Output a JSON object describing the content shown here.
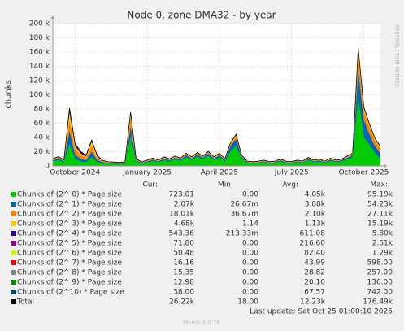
{
  "chart_data": {
    "type": "area",
    "title": "Node 0, zone DMA32 - by year",
    "y_label": "chunks",
    "side_label": "RRDTOOL / TOBI OETIKER",
    "categories": [
      null,
      null,
      null,
      null,
      "October 2024",
      null,
      null,
      null,
      null,
      null,
      null,
      null,
      null,
      null,
      null,
      null,
      null,
      "January 2025",
      null,
      null,
      null,
      null,
      null,
      null,
      null,
      null,
      null,
      null,
      null,
      null,
      "April 2025",
      null,
      null,
      null,
      null,
      null,
      null,
      null,
      null,
      null,
      null,
      null,
      null,
      "July 2025",
      null,
      null,
      null,
      null,
      null,
      null,
      null,
      null,
      null,
      null,
      null,
      null,
      "October 2025",
      null,
      null,
      null
    ],
    "ylim": [
      0,
      200000
    ],
    "yticks": [
      0,
      {
        "value": 20000,
        "label": "20 k"
      },
      {
        "value": 40000,
        "label": "40 k"
      },
      {
        "value": 60000,
        "label": "60 k"
      },
      {
        "value": 80000,
        "label": "80 k"
      },
      {
        "value": 100000,
        "label": "100 k"
      },
      {
        "value": 120000,
        "label": "120 k"
      },
      {
        "value": 140000,
        "label": "140 k"
      },
      {
        "value": 160000,
        "label": "160 k"
      },
      {
        "value": 180000,
        "label": "180 k"
      },
      {
        "value": 200000,
        "label": "200 k"
      }
    ],
    "grid": true,
    "stacked": true,
    "legend_headers": [
      "Cur:",
      "Min:",
      "Avg:",
      "Max:"
    ],
    "series": [
      {
        "name": "Chunks of (2^ 0) * Page size",
        "color": "#00CC00",
        "stats": [
          "723.01",
          "0.00",
          "4.05k",
          "95.19k"
        ],
        "values": [
          6000,
          8000,
          5000,
          30000,
          10000,
          6000,
          5000,
          12000,
          5000,
          4000,
          3000,
          3000,
          2500,
          3000,
          40000,
          6000,
          3000,
          5000,
          7000,
          5000,
          8000,
          6000,
          9000,
          7000,
          12000,
          8000,
          13000,
          9000,
          14000,
          8000,
          12000,
          6000,
          20000,
          28000,
          10000,
          4000,
          3500,
          4000,
          5000,
          3500,
          4000,
          6000,
          4000,
          3500,
          5000,
          4000,
          8000,
          5000,
          6000,
          4000,
          7000,
          5000,
          6000,
          9000,
          12000,
          95000,
          40000,
          30000,
          18000,
          10000
        ]
      },
      {
        "name": "Chunks of (2^ 1) * Page size",
        "color": "#0066B3",
        "stats": [
          "2.07k",
          "26.67m",
          "3.88k",
          "54.23k"
        ],
        "values": [
          2000,
          2500,
          1500,
          20000,
          6000,
          4000,
          3000,
          8000,
          3000,
          1500,
          1000,
          1000,
          1000,
          1200,
          15000,
          2000,
          1000,
          1500,
          2000,
          1500,
          2500,
          2000,
          2500,
          2000,
          3000,
          2500,
          3000,
          2500,
          3500,
          2500,
          3000,
          2000,
          8000,
          10000,
          3000,
          1200,
          1000,
          1200,
          1500,
          1000,
          1200,
          1800,
          1200,
          1000,
          1500,
          1200,
          2000,
          1500,
          1800,
          1200,
          2000,
          1500,
          1800,
          2500,
          3000,
          40000,
          25000,
          15000,
          10000,
          8000
        ]
      },
      {
        "name": "Chunks of (2^ 2) * Page size",
        "color": "#FF8000",
        "stats": [
          "18.01k",
          "36.67m",
          "2.10k",
          "27.11k"
        ],
        "values": [
          1000,
          1200,
          800,
          15000,
          8000,
          5000,
          3000,
          8000,
          3000,
          1000,
          800,
          600,
          600,
          700,
          12000,
          1000,
          600,
          800,
          1000,
          800,
          1000,
          900,
          1200,
          900,
          1500,
          1000,
          1500,
          1200,
          1500,
          1000,
          1500,
          900,
          3000,
          4000,
          1200,
          600,
          500,
          600,
          700,
          500,
          600,
          800,
          600,
          500,
          700,
          600,
          1000,
          700,
          800,
          600,
          900,
          700,
          800,
          1200,
          1500,
          20000,
          12000,
          10000,
          8000,
          6000
        ]
      },
      {
        "name": "Chunks of (2^ 3) * Page size",
        "color": "#FFCC00",
        "stats": [
          "4.68k",
          "1.14",
          "1.13k",
          "15.19k"
        ],
        "values": [
          500,
          600,
          400,
          10000,
          4000,
          2500,
          2000,
          6000,
          2000,
          500,
          400,
          300,
          300,
          300,
          6000,
          500,
          300,
          400,
          400,
          400,
          500,
          400,
          500,
          400,
          600,
          500,
          600,
          500,
          600,
          500,
          600,
          400,
          1000,
          1500,
          500,
          300,
          300,
          300,
          300,
          300,
          300,
          400,
          300,
          300,
          300,
          300,
          400,
          300,
          400,
          300,
          400,
          300,
          400,
          500,
          600,
          8000,
          4000,
          3000,
          2000,
          2000
        ]
      },
      {
        "name": "Chunks of (2^ 4) * Page size",
        "color": "#330099",
        "stats": [
          "543.36",
          "213.33m",
          "611.08",
          "5.80k"
        ],
        "values": [
          300,
          300,
          300,
          5800,
          3000,
          2500,
          1500,
          2000,
          1000,
          300,
          200,
          200,
          200,
          200,
          2000,
          300,
          200,
          200,
          200,
          200,
          300,
          200,
          300,
          200,
          300,
          200,
          300,
          200,
          300,
          200,
          300,
          200,
          400,
          500,
          200,
          200,
          200,
          200,
          200,
          200,
          200,
          200,
          200,
          200,
          200,
          200,
          200,
          200,
          200,
          200,
          200,
          200,
          200,
          300,
          300,
          2000,
          1500,
          1000,
          800,
          800
        ]
      },
      {
        "name": "Chunks of (2^ 5) * Page size",
        "color": "#990099",
        "stats": [
          "71.80",
          "0.00",
          "216.60",
          "2.51k"
        ],
        "values": [
          200,
          200,
          200,
          200,
          200,
          200,
          200,
          200,
          200,
          200,
          200,
          200,
          200,
          200,
          200,
          200,
          200,
          200,
          200,
          200,
          200,
          200,
          200,
          200,
          200,
          200,
          200,
          200,
          200,
          200,
          200,
          200,
          200,
          200,
          200,
          200,
          200,
          200,
          200,
          200,
          200,
          200,
          200,
          200,
          200,
          200,
          200,
          200,
          200,
          200,
          200,
          200,
          200,
          200,
          200,
          200,
          200,
          200,
          200,
          200
        ]
      },
      {
        "name": "Chunks of (2^ 6) * Page size",
        "color": "#CCFF00",
        "stats": [
          "50.48",
          "0.00",
          "82.40",
          "1.29k"
        ],
        "values": [
          80,
          80,
          80,
          80,
          80,
          80,
          80,
          80,
          80,
          80,
          80,
          80,
          80,
          80,
          80,
          80,
          80,
          80,
          80,
          80,
          80,
          80,
          80,
          80,
          80,
          80,
          80,
          80,
          80,
          80,
          80,
          80,
          80,
          80,
          80,
          80,
          80,
          80,
          80,
          80,
          80,
          80,
          80,
          80,
          80,
          80,
          80,
          80,
          80,
          80,
          80,
          80,
          80,
          80,
          80,
          80,
          80,
          80,
          80,
          80
        ]
      },
      {
        "name": "Chunks of (2^ 7) * Page size",
        "color": "#FF0000",
        "stats": [
          "16.16",
          "0.00",
          "43.99",
          "598.00"
        ],
        "values": [
          40,
          40,
          40,
          40,
          40,
          40,
          40,
          40,
          40,
          40,
          40,
          40,
          40,
          40,
          40,
          40,
          40,
          40,
          40,
          40,
          40,
          40,
          40,
          40,
          40,
          40,
          40,
          40,
          40,
          40,
          40,
          40,
          40,
          40,
          40,
          40,
          40,
          40,
          40,
          40,
          40,
          40,
          40,
          40,
          40,
          40,
          40,
          40,
          40,
          40,
          40,
          40,
          40,
          40,
          40,
          40,
          40,
          40,
          40,
          40
        ]
      },
      {
        "name": "Chunks of (2^ 8) * Page size",
        "color": "#808080",
        "stats": [
          "15.35",
          "0.00",
          "28.82",
          "257.00"
        ],
        "values": [
          30,
          30,
          30,
          30,
          30,
          30,
          30,
          30,
          30,
          30,
          30,
          30,
          30,
          30,
          30,
          30,
          30,
          30,
          30,
          30,
          30,
          30,
          30,
          30,
          30,
          30,
          30,
          30,
          30,
          30,
          30,
          30,
          30,
          30,
          30,
          30,
          30,
          30,
          30,
          30,
          30,
          30,
          30,
          30,
          30,
          30,
          30,
          30,
          30,
          30,
          30,
          30,
          30,
          30,
          30,
          30,
          30,
          30,
          30,
          30
        ]
      },
      {
        "name": "Chunks of (2^ 9) * Page size",
        "color": "#008F00",
        "stats": [
          "12.98",
          "0.00",
          "20.10",
          "136.00"
        ],
        "values": [
          20,
          20,
          20,
          20,
          20,
          20,
          20,
          20,
          20,
          20,
          20,
          20,
          20,
          20,
          20,
          20,
          20,
          20,
          20,
          20,
          20,
          20,
          20,
          20,
          20,
          20,
          20,
          20,
          20,
          20,
          20,
          20,
          20,
          20,
          20,
          20,
          20,
          20,
          20,
          20,
          20,
          20,
          20,
          20,
          20,
          20,
          20,
          20,
          20,
          20,
          20,
          20,
          20,
          20,
          20,
          20,
          20,
          20,
          20,
          20
        ]
      },
      {
        "name": "Chunks of (2^10) * Page size",
        "color": "#00487D",
        "stats": [
          "38.00",
          "0.00",
          "67.57",
          "742.00"
        ],
        "values": [
          70,
          70,
          70,
          70,
          70,
          70,
          70,
          70,
          70,
          70,
          70,
          70,
          70,
          70,
          70,
          70,
          70,
          70,
          70,
          70,
          70,
          70,
          70,
          70,
          70,
          70,
          70,
          70,
          70,
          70,
          70,
          70,
          70,
          70,
          70,
          70,
          70,
          70,
          70,
          70,
          70,
          70,
          70,
          70,
          70,
          70,
          70,
          70,
          70,
          70,
          70,
          70,
          70,
          70,
          70,
          70,
          70,
          70,
          70,
          70
        ]
      }
    ],
    "total": {
      "name": "Total",
      "color": "#000000",
      "stats": [
        "26.22k",
        "18.00",
        "12.23k",
        "176.49k"
      ],
      "values": [
        10240,
        13040,
        8440,
        81240,
        31440,
        20440,
        14940,
        36440,
        14440,
        7740,
        5840,
        5540,
        5040,
        5840,
        75440,
        10240,
        5540,
        8340,
        11040,
        8340,
        12740,
        9940,
        13940,
        10940,
        17840,
        12640,
        18840,
        13840,
        20340,
        12640,
        17840,
        9940,
        32840,
        44440,
        15340,
        6740,
        5940,
        6740,
        8140,
        5940,
        6740,
        9640,
        6740,
        5940,
        8140,
        6740,
        12040,
        8140,
        9640,
        6740,
        10940,
        8140,
        9640,
        13940,
        17840,
        165440,
        82940,
        59440,
        39240,
        27240
      ]
    },
    "last_update": "Last update: Sat Oct 25 01:00:10 2025",
    "footer": "Munin 2.0.76"
  }
}
